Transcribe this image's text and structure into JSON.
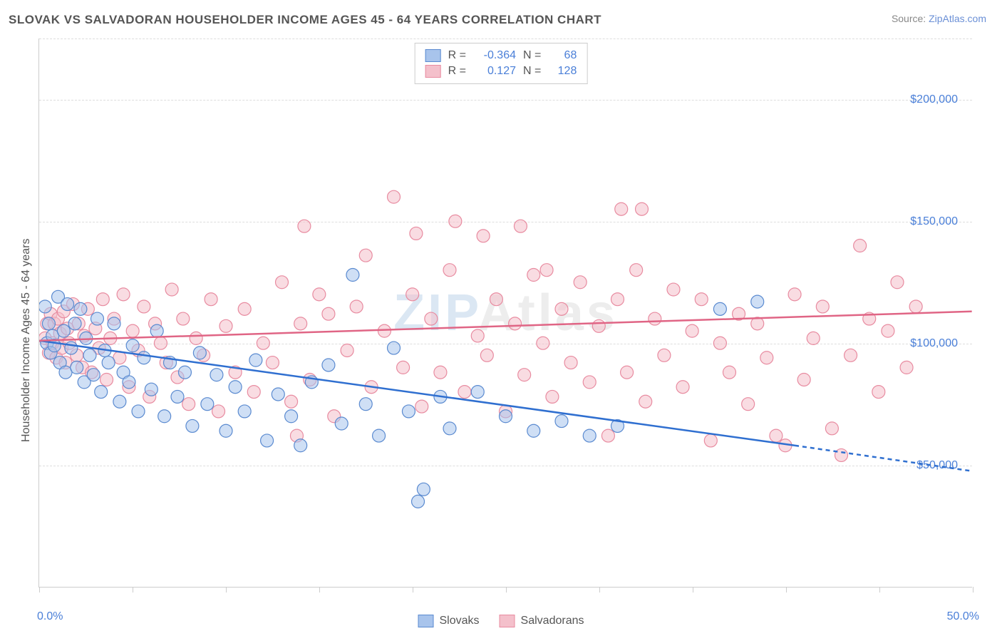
{
  "title": "SLOVAK VS SALVADORAN HOUSEHOLDER INCOME AGES 45 - 64 YEARS CORRELATION CHART",
  "source_label": "Source:",
  "source_name": "ZipAtlas.com",
  "watermark_a": "ZIP",
  "watermark_b": "Atlas",
  "chart": {
    "type": "scatter",
    "background_color": "#ffffff",
    "grid_color": "#dddddd",
    "axis_color": "#cccccc",
    "tick_label_color": "#4a7fd8",
    "axis_label_color": "#555555",
    "y_axis_label": "Householder Income Ages 45 - 64 years",
    "x_axis_label": "",
    "xlim": [
      0,
      50
    ],
    "ylim": [
      0,
      225000
    ],
    "x_tick_positions": [
      0,
      5,
      10,
      15,
      20,
      25,
      30,
      35,
      40,
      45,
      50
    ],
    "x_tick_labels": {
      "0": "0.0%",
      "50": "50.0%"
    },
    "y_gridlines": [
      50000,
      100000,
      150000,
      200000
    ],
    "y_tick_labels": {
      "50000": "$50,000",
      "100000": "$100,000",
      "150000": "$150,000",
      "200000": "$200,000"
    },
    "marker_radius": 9,
    "marker_opacity": 0.55,
    "trend_line_width": 2.5,
    "series": [
      {
        "name": "Slovaks",
        "fill_color": "#a8c4ec",
        "stroke_color": "#5a8ad0",
        "line_color": "#2f6fd0",
        "r_value": "-0.364",
        "n_value": "68",
        "trend": {
          "x0": 0,
          "y0": 101000,
          "x1_solid": 40.5,
          "y1_solid": 58000,
          "x1_dash": 50,
          "y1_dash": 47500
        },
        "points": [
          [
            0.3,
            115000
          ],
          [
            0.4,
            100000
          ],
          [
            0.5,
            108000
          ],
          [
            0.6,
            96000
          ],
          [
            0.7,
            103000
          ],
          [
            0.8,
            99000
          ],
          [
            1.0,
            119000
          ],
          [
            1.1,
            92000
          ],
          [
            1.3,
            105000
          ],
          [
            1.4,
            88000
          ],
          [
            1.5,
            116000
          ],
          [
            1.7,
            98000
          ],
          [
            1.9,
            108000
          ],
          [
            2.0,
            90000
          ],
          [
            2.2,
            114000
          ],
          [
            2.4,
            84000
          ],
          [
            2.5,
            102000
          ],
          [
            2.7,
            95000
          ],
          [
            2.9,
            87000
          ],
          [
            3.1,
            110000
          ],
          [
            3.3,
            80000
          ],
          [
            3.5,
            97000
          ],
          [
            3.7,
            92000
          ],
          [
            4.0,
            108000
          ],
          [
            4.3,
            76000
          ],
          [
            4.5,
            88000
          ],
          [
            4.8,
            84000
          ],
          [
            5.0,
            99000
          ],
          [
            5.3,
            72000
          ],
          [
            5.6,
            94000
          ],
          [
            6.0,
            81000
          ],
          [
            6.3,
            105000
          ],
          [
            6.7,
            70000
          ],
          [
            7.0,
            92000
          ],
          [
            7.4,
            78000
          ],
          [
            7.8,
            88000
          ],
          [
            8.2,
            66000
          ],
          [
            8.6,
            96000
          ],
          [
            9.0,
            75000
          ],
          [
            9.5,
            87000
          ],
          [
            10.0,
            64000
          ],
          [
            10.5,
            82000
          ],
          [
            11.0,
            72000
          ],
          [
            11.6,
            93000
          ],
          [
            12.2,
            60000
          ],
          [
            12.8,
            79000
          ],
          [
            13.5,
            70000
          ],
          [
            14.0,
            58000
          ],
          [
            14.6,
            84000
          ],
          [
            15.5,
            91000
          ],
          [
            16.2,
            67000
          ],
          [
            16.8,
            128000
          ],
          [
            17.5,
            75000
          ],
          [
            18.2,
            62000
          ],
          [
            19.0,
            98000
          ],
          [
            19.8,
            72000
          ],
          [
            20.3,
            35000
          ],
          [
            20.6,
            40000
          ],
          [
            21.5,
            78000
          ],
          [
            22.0,
            65000
          ],
          [
            23.5,
            80000
          ],
          [
            25.0,
            70000
          ],
          [
            26.5,
            64000
          ],
          [
            28.0,
            68000
          ],
          [
            29.5,
            62000
          ],
          [
            31.0,
            66000
          ],
          [
            36.5,
            114000
          ],
          [
            38.5,
            117000
          ]
        ]
      },
      {
        "name": "Salvadorans",
        "fill_color": "#f4c0cb",
        "stroke_color": "#e88ba0",
        "line_color": "#e06585",
        "r_value": "0.127",
        "n_value": "128",
        "trend": {
          "x0": 0,
          "y0": 101000,
          "x1_solid": 50,
          "y1_solid": 113000,
          "x1_dash": 50,
          "y1_dash": 113000
        },
        "points": [
          [
            0.3,
            102000
          ],
          [
            0.4,
            108000
          ],
          [
            0.5,
            96000
          ],
          [
            0.6,
            112000
          ],
          [
            0.7,
            100000
          ],
          [
            0.8,
            108000
          ],
          [
            0.9,
            94000
          ],
          [
            1.0,
            110000
          ],
          [
            1.1,
            104000
          ],
          [
            1.2,
            98000
          ],
          [
            1.3,
            113000
          ],
          [
            1.4,
            92000
          ],
          [
            1.5,
            106000
          ],
          [
            1.6,
            100000
          ],
          [
            1.8,
            116000
          ],
          [
            2.0,
            95000
          ],
          [
            2.1,
            108000
          ],
          [
            2.3,
            90000
          ],
          [
            2.4,
            103000
          ],
          [
            2.6,
            114000
          ],
          [
            2.8,
            88000
          ],
          [
            3.0,
            106000
          ],
          [
            3.2,
            98000
          ],
          [
            3.4,
            118000
          ],
          [
            3.6,
            85000
          ],
          [
            3.8,
            102000
          ],
          [
            4.0,
            110000
          ],
          [
            4.3,
            94000
          ],
          [
            4.5,
            120000
          ],
          [
            4.8,
            82000
          ],
          [
            5.0,
            105000
          ],
          [
            5.3,
            97000
          ],
          [
            5.6,
            115000
          ],
          [
            5.9,
            78000
          ],
          [
            6.2,
            108000
          ],
          [
            6.5,
            100000
          ],
          [
            6.8,
            92000
          ],
          [
            7.1,
            122000
          ],
          [
            7.4,
            86000
          ],
          [
            7.7,
            110000
          ],
          [
            8.0,
            75000
          ],
          [
            8.4,
            102000
          ],
          [
            8.8,
            95000
          ],
          [
            9.2,
            118000
          ],
          [
            9.6,
            72000
          ],
          [
            10.0,
            107000
          ],
          [
            10.5,
            88000
          ],
          [
            11.0,
            114000
          ],
          [
            11.5,
            80000
          ],
          [
            12.0,
            100000
          ],
          [
            12.5,
            92000
          ],
          [
            13.0,
            125000
          ],
          [
            13.5,
            76000
          ],
          [
            13.8,
            62000
          ],
          [
            14.0,
            108000
          ],
          [
            14.2,
            148000
          ],
          [
            14.5,
            85000
          ],
          [
            15.0,
            120000
          ],
          [
            15.5,
            112000
          ],
          [
            15.8,
            70000
          ],
          [
            16.5,
            97000
          ],
          [
            17.0,
            115000
          ],
          [
            17.5,
            136000
          ],
          [
            17.8,
            82000
          ],
          [
            18.5,
            105000
          ],
          [
            19.0,
            160000
          ],
          [
            19.5,
            90000
          ],
          [
            20.0,
            120000
          ],
          [
            20.2,
            145000
          ],
          [
            20.5,
            74000
          ],
          [
            21.0,
            110000
          ],
          [
            21.5,
            88000
          ],
          [
            22.0,
            130000
          ],
          [
            22.3,
            150000
          ],
          [
            22.8,
            80000
          ],
          [
            23.5,
            103000
          ],
          [
            23.8,
            144000
          ],
          [
            24.0,
            95000
          ],
          [
            24.5,
            118000
          ],
          [
            25.0,
            72000
          ],
          [
            25.5,
            108000
          ],
          [
            25.8,
            148000
          ],
          [
            26.0,
            87000
          ],
          [
            26.5,
            128000
          ],
          [
            27.0,
            100000
          ],
          [
            27.2,
            130000
          ],
          [
            27.5,
            78000
          ],
          [
            28.0,
            114000
          ],
          [
            28.5,
            92000
          ],
          [
            29.0,
            125000
          ],
          [
            29.5,
            84000
          ],
          [
            30.0,
            107000
          ],
          [
            30.5,
            62000
          ],
          [
            31.0,
            118000
          ],
          [
            31.2,
            155000
          ],
          [
            31.5,
            88000
          ],
          [
            32.0,
            130000
          ],
          [
            32.3,
            155000
          ],
          [
            32.5,
            76000
          ],
          [
            33.0,
            110000
          ],
          [
            33.5,
            95000
          ],
          [
            34.0,
            122000
          ],
          [
            34.5,
            82000
          ],
          [
            35.0,
            105000
          ],
          [
            35.5,
            118000
          ],
          [
            36.0,
            60000
          ],
          [
            36.5,
            100000
          ],
          [
            37.0,
            88000
          ],
          [
            37.5,
            112000
          ],
          [
            38.0,
            75000
          ],
          [
            38.5,
            108000
          ],
          [
            39.0,
            94000
          ],
          [
            39.5,
            62000
          ],
          [
            40.0,
            58000
          ],
          [
            40.5,
            120000
          ],
          [
            41.0,
            85000
          ],
          [
            41.5,
            102000
          ],
          [
            42.0,
            115000
          ],
          [
            42.5,
            65000
          ],
          [
            43.0,
            54000
          ],
          [
            43.5,
            95000
          ],
          [
            44.0,
            140000
          ],
          [
            44.5,
            110000
          ],
          [
            45.0,
            80000
          ],
          [
            45.5,
            105000
          ],
          [
            46.0,
            125000
          ],
          [
            46.5,
            90000
          ],
          [
            47.0,
            115000
          ]
        ]
      }
    ]
  },
  "legend_top": {
    "r_label": "R =",
    "n_label": "N ="
  },
  "legend_bottom": {
    "items": [
      "Slovaks",
      "Salvadorans"
    ]
  }
}
